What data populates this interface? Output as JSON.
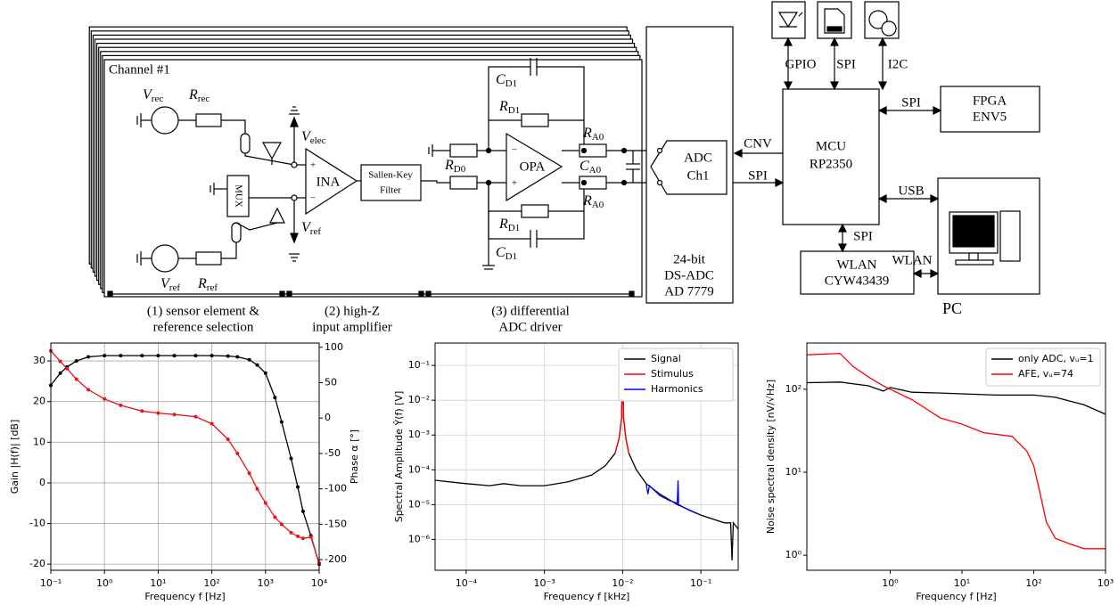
{
  "diagram": {
    "channel_label": "Channel #1",
    "symbols": [
      {
        "main": "V",
        "sub": "rec"
      },
      {
        "main": "R",
        "sub": "rec"
      },
      {
        "main": "V",
        "sub": "elec"
      },
      {
        "main": "V",
        "sub": "ref"
      },
      {
        "main": "V",
        "sub": "ref"
      },
      {
        "main": "R",
        "sub": "ref"
      },
      {
        "main": "C",
        "sub": "D1"
      },
      {
        "main": "R",
        "sub": "D1"
      },
      {
        "main": "R",
        "sub": "A0"
      },
      {
        "main": "R",
        "sub": "D0"
      },
      {
        "main": "C",
        "sub": "A0"
      },
      {
        "main": "R",
        "sub": "A0"
      },
      {
        "main": "R",
        "sub": "D1"
      },
      {
        "main": "C",
        "sub": "D1"
      }
    ],
    "ina": {
      "label": "INA",
      "inputs": [
        "+",
        "−"
      ]
    },
    "mux": "MUX",
    "filter": [
      "Sallen-Key",
      "Filter"
    ],
    "opa": {
      "label": "OPA",
      "inputs": [
        "−",
        "+"
      ]
    },
    "adc_channel": [
      "ADC",
      "Ch1"
    ],
    "adc": [
      "24-bit",
      "DS-ADC",
      "AD 7779"
    ],
    "links": {
      "cnv": "CNV",
      "spi_adc": "SPI",
      "gpio": "GPIO",
      "spi_sd": "SPI",
      "i2c": "I2C",
      "spi_fpga": "SPI",
      "usb": "USB",
      "spi_wlan": "SPI",
      "wlan": "WLAN"
    },
    "mcu": [
      "MCU",
      "RP2350"
    ],
    "fpga": [
      "FPGA",
      "ENV5"
    ],
    "wlan_module": [
      "WLAN",
      "CYW43439"
    ],
    "pc": "PC",
    "captions": [
      [
        "(1) sensor element &",
        "reference selection"
      ],
      [
        "(2) high-Z",
        "input amplifier"
      ],
      [
        "(3) differential",
        "ADC driver"
      ]
    ]
  },
  "chart_data": [
    {
      "type": "line",
      "xlabel": "Frequency f [Hz]",
      "ylabel": "Gain |H(f)| [dB]",
      "y2label": "Phase α [°]",
      "xscale": "log",
      "xlim": [
        0.1,
        10000
      ],
      "xticks": [
        {
          "value": 0.1,
          "label": "10⁻¹"
        },
        {
          "value": 1,
          "label": "10⁰"
        },
        {
          "value": 10,
          "label": "10¹"
        },
        {
          "value": 100,
          "label": "10²"
        },
        {
          "value": 1000,
          "label": "10³"
        },
        {
          "value": 10000,
          "label": "10⁴"
        }
      ],
      "yscale": "linear",
      "ylim": [
        -21.5,
        34.4
      ],
      "yticks": [
        -20,
        -10,
        0,
        10,
        20,
        30
      ],
      "y2lim": [
        -215,
        106
      ],
      "y2ticks": [
        -200,
        -150,
        -100,
        -50,
        0,
        50,
        100
      ],
      "grid": true,
      "series": [
        {
          "color": "#000000",
          "marker": true,
          "x": [
            0.1,
            0.15,
            0.2,
            0.3,
            0.5,
            1,
            2,
            5,
            10,
            20,
            50,
            100,
            200,
            300,
            500,
            700,
            1000,
            1500,
            2000,
            3000,
            4000,
            5000,
            7000,
            10000
          ],
          "values": [
            24,
            27,
            28.5,
            30,
            31,
            31.3,
            31.3,
            31.3,
            31.3,
            31.3,
            31.3,
            31.3,
            31.2,
            31,
            30.3,
            29,
            27,
            21,
            15,
            6,
            -1,
            -7,
            -13,
            -20
          ]
        },
        {
          "color": "#e8141a",
          "marker": true,
          "axis": "y2",
          "x": [
            0.1,
            0.15,
            0.2,
            0.3,
            0.5,
            1,
            2,
            5,
            10,
            20,
            50,
            100,
            200,
            300,
            500,
            700,
            1000,
            1500,
            2000,
            3000,
            4000,
            5000,
            7000,
            10000
          ],
          "values": [
            95,
            80,
            70,
            55,
            40,
            27,
            18,
            10,
            7,
            5,
            2,
            -8,
            -30,
            -50,
            -78,
            -100,
            -120,
            -140,
            -150,
            -162,
            -167,
            -170,
            -168,
            -205
          ]
        }
      ]
    },
    {
      "type": "line",
      "xlabel": "Frequency f [kHz]",
      "ylabel": "Spectral Amplitude Ŷ(f) [V]",
      "xscale": "log",
      "xlim": [
        4e-05,
        0.3
      ],
      "xticks": [
        {
          "value": 0.0001,
          "label": "10⁻⁴"
        },
        {
          "value": 0.001,
          "label": "10⁻³"
        },
        {
          "value": 0.01,
          "label": "10⁻²"
        },
        {
          "value": 0.1,
          "label": "10⁻¹"
        }
      ],
      "yscale": "log",
      "ylim": [
        1.3e-07,
        0.44
      ],
      "yticks": [
        {
          "value": 1e-06,
          "label": "10⁻⁶"
        },
        {
          "value": 1e-05,
          "label": "10⁻⁵"
        },
        {
          "value": 0.0001,
          "label": "10⁻⁴"
        },
        {
          "value": 0.001,
          "label": "10⁻³"
        },
        {
          "value": 0.01,
          "label": "10⁻²"
        },
        {
          "value": 0.1,
          "label": "10⁻¹"
        }
      ],
      "grid": true,
      "legend": "upper right",
      "series": [
        {
          "name": "Signal",
          "color": "#000000",
          "x": [
            4e-05,
            0.0001,
            0.0002,
            0.0003,
            0.0005,
            0.001,
            0.002,
            0.004,
            0.006,
            0.008,
            0.009,
            0.0097,
            0.01,
            0.0103,
            0.011,
            0.012,
            0.015,
            0.02,
            0.03,
            0.05,
            0.1,
            0.2,
            0.24,
            0.25,
            0.26,
            0.3
          ],
          "values": [
            5e-05,
            4e-05,
            3.5e-05,
            4e-05,
            3.5e-05,
            3.5e-05,
            4.5e-05,
            7e-05,
            0.00013,
            0.0003,
            0.0008,
            0.003,
            0.25,
            0.003,
            0.0008,
            0.0003,
            0.0001,
            4e-05,
            2e-05,
            1e-05,
            5e-06,
            3e-06,
            3e-06,
            2.5e-07,
            3e-06,
            2e-06
          ]
        },
        {
          "name": "Stimulus",
          "color": "#ff0000",
          "x": [
            0.008,
            0.009,
            0.0097,
            0.01,
            0.0103,
            0.011,
            0.012
          ],
          "values": [
            0.0003,
            0.0008,
            0.003,
            0.25,
            0.003,
            0.0008,
            0.0003
          ]
        },
        {
          "name": "Harmonics",
          "color": "#0000ff",
          "x": [
            0.02,
            0.021,
            0.022,
            0.03,
            0.04,
            0.05,
            0.051,
            0.052,
            0.07,
            0.09
          ],
          "values": [
            4e-05,
            2e-05,
            3.5e-05,
            1.8e-05,
            1.3e-05,
            1.1e-05,
            5e-05,
            1e-05,
            7e-06,
            5.5e-06
          ]
        }
      ]
    },
    {
      "type": "line",
      "xlabel": "Frequency f [Hz]",
      "ylabel": "Noise spectral density [nV/√Hz]",
      "xscale": "log",
      "xlim": [
        0.069,
        1000
      ],
      "xticks": [
        {
          "value": 1,
          "label": "10⁰"
        },
        {
          "value": 10,
          "label": "10¹"
        },
        {
          "value": 100,
          "label": "10²"
        },
        {
          "value": 1000,
          "label": "10³"
        }
      ],
      "yscale": "log",
      "ylim": [
        0.66,
        360
      ],
      "yticks": [
        {
          "value": 1,
          "label": "10⁰"
        },
        {
          "value": 10,
          "label": "10¹"
        },
        {
          "value": 100,
          "label": "10²"
        }
      ],
      "grid": false,
      "legend": "upper right",
      "series": [
        {
          "name": "only ADC, vᵤ=1",
          "color": "#000000",
          "x": [
            0.07,
            0.2,
            0.5,
            0.8,
            1,
            2,
            5,
            10,
            30,
            100,
            200,
            500,
            1000
          ],
          "values": [
            120,
            122,
            110,
            95,
            105,
            92,
            90,
            88,
            85,
            85,
            80,
            65,
            50
          ]
        },
        {
          "name": "AFE, vᵤ=74",
          "color": "#ff0000",
          "x": [
            0.07,
            0.2,
            0.3,
            0.5,
            0.8,
            1,
            2,
            3,
            5,
            10,
            20,
            50,
            80,
            100,
            120,
            150,
            200,
            300,
            500,
            1000
          ],
          "values": [
            260,
            270,
            190,
            140,
            110,
            100,
            75,
            60,
            45,
            38,
            30,
            27,
            18,
            12,
            6,
            2.5,
            1.6,
            1.4,
            1.2,
            1.2
          ]
        }
      ]
    }
  ]
}
